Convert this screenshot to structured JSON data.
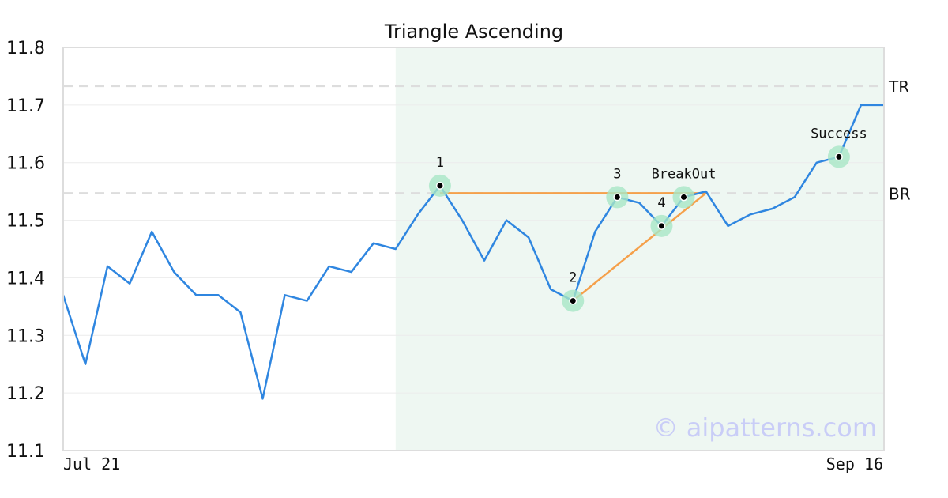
{
  "chart_data": {
    "type": "line",
    "title": "Triangle Ascending",
    "y_range": [
      11.1,
      11.8
    ],
    "y_ticks": [
      "11.8",
      "11.7",
      "11.6",
      "11.5",
      "11.4",
      "11.3",
      "11.2",
      "11.1"
    ],
    "x_labels": {
      "start": "Jul 21",
      "end": "Sep 16"
    },
    "grid": true,
    "series": [
      {
        "color": "#2f86e0",
        "values": [
          11.37,
          11.25,
          11.42,
          11.39,
          11.48,
          11.41,
          11.37,
          11.37,
          11.34,
          11.19,
          11.37,
          11.36,
          11.42,
          11.41,
          11.46,
          11.45,
          11.51,
          11.56,
          11.5,
          11.43,
          11.5,
          11.47,
          11.38,
          11.36,
          11.48,
          11.54,
          11.53,
          11.49,
          11.54,
          11.55,
          11.49,
          11.51,
          11.52,
          11.54,
          11.6,
          11.61,
          11.7,
          11.7
        ]
      }
    ],
    "pattern_region": {
      "start_index": 15,
      "end_index": 37,
      "color": "#eef7f2"
    },
    "reference_lines": [
      {
        "label": "TR",
        "value": 11.733,
        "color": "#dddddd"
      },
      {
        "label": "BR",
        "value": 11.547,
        "color": "#dddddd"
      }
    ],
    "trend_lines": [
      {
        "from": [
          17,
          11.547
        ],
        "to": [
          29,
          11.547
        ],
        "color": "#f5a04a"
      },
      {
        "from": [
          23,
          11.36
        ],
        "to": [
          29,
          11.547
        ],
        "color": "#f5a04a"
      }
    ],
    "markers": [
      {
        "label": "1",
        "index": 17,
        "value": 11.56
      },
      {
        "label": "2",
        "index": 23,
        "value": 11.36
      },
      {
        "label": "3",
        "index": 25,
        "value": 11.54
      },
      {
        "label": "4",
        "index": 27,
        "value": 11.49
      },
      {
        "label": "BreakOut",
        "index": 28,
        "value": 11.54
      },
      {
        "label": "Success",
        "index": 35,
        "value": 11.61
      }
    ],
    "marker_halo_color": "#a8e6c5"
  },
  "watermark": "© aipatterns.com"
}
